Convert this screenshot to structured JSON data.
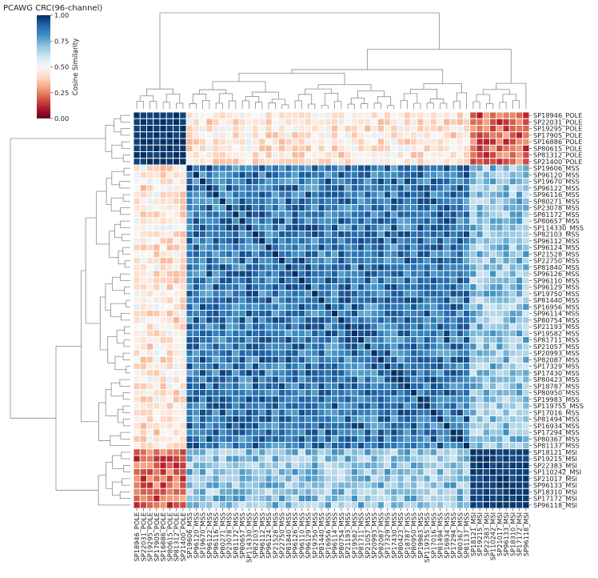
{
  "chart_data": {
    "type": "heatmap",
    "title": "PCAWG CRC(96-channel)",
    "colorbar": {
      "label": "Cosine Similarity",
      "ticks": [
        "0.00",
        "0.25",
        "0.50",
        "0.75",
        "1.00"
      ],
      "range": [
        0,
        1
      ],
      "colormap": "RdBu",
      "colors": [
        "#67001f",
        "#b2182b",
        "#d6604d",
        "#f4a582",
        "#fddbc7",
        "#f7f7f7",
        "#d1e5f0",
        "#92c5de",
        "#4393c3",
        "#2166ac",
        "#053061"
      ]
    },
    "grid": "white-separated cells",
    "dendrograms": [
      "top (columns)",
      "left (rows)"
    ],
    "samples": [
      "SP18946_POLE",
      "SP22031_POLE",
      "SP19295_POLE",
      "SP17905_POLE",
      "SP16886_POLE",
      "SP80615_POLE",
      "SP81312_POLE",
      "SP21400_POLE",
      "SP19606_MSS",
      "SP96120_MSS",
      "SP19670_MSS",
      "SP96122_MSS",
      "SP96116_MSS",
      "SP80271_MSS",
      "SP23078_MSS",
      "SP81172_MSS",
      "SP80657_MSS",
      "SP114330_MSS",
      "SP82103_MSS",
      "SP96112_MSS",
      "SP96124_MSS",
      "SP21528_MSS",
      "SP22750_MSS",
      "SP81840_MSS",
      "SP96126_MSS",
      "SP96110_MSS",
      "SP96129_MSS",
      "SP19750_MSS",
      "SP81440_MSS",
      "SP16956_MSS",
      "SP96114_MSS",
      "SP80754_MSS",
      "SP21193_MSS",
      "SP19582_MSS",
      "SP81711_MSS",
      "SP21057_MSS",
      "SP20993_MSS",
      "SP82087_MSS",
      "SP17329_MSS",
      "SP17430_MSS",
      "SP80423_MSS",
      "SP18787_MSS",
      "SP80950_MSS",
      "SP19983_MSS",
      "SP119755_MSS",
      "SP17016_MSS",
      "SP81494_MSS",
      "SP16934_MSS",
      "SP17294_MSS",
      "SP80367_MSS",
      "SP81137_MSS",
      "SP18121_MSI",
      "SP19215_MSI",
      "SP22383_MSI",
      "SP110242_MSI",
      "SP21017_MSI",
      "SP96133_MSI",
      "SP18310_MSI",
      "SP17172_MSI",
      "SP96118_MSI"
    ],
    "groups": [
      {
        "name": "POLE",
        "count": 8
      },
      {
        "name": "MSS",
        "count": 43
      },
      {
        "name": "MSI",
        "count": 9
      }
    ],
    "block_similarity": {
      "POLE_POLE": 0.99,
      "POLE_MSS": 0.44,
      "POLE_MSI": 0.21,
      "MSS_MSS": 0.86,
      "MSS_MSI": 0.7,
      "MSI_MSI": 0.97
    }
  }
}
